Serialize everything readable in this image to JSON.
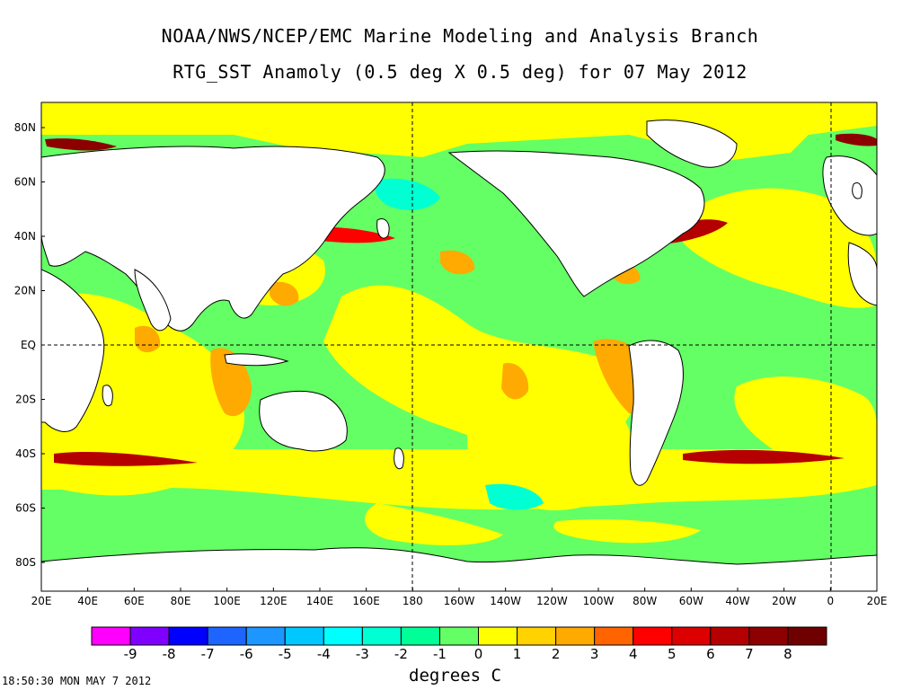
{
  "title_line1": "NOAA/NWS/NCEP/EMC Marine Modeling and Analysis Branch",
  "title_line2": "RTG_SST Anamoly (0.5 deg X 0.5 deg) for 07 May 2012",
  "lat_labels": [
    "80N",
    "60N",
    "40N",
    "20N",
    "EQ",
    "20S",
    "40S",
    "60S",
    "80S"
  ],
  "lon_labels": [
    "20E",
    "40E",
    "60E",
    "80E",
    "100E",
    "120E",
    "140E",
    "160E",
    "180",
    "160W",
    "140W",
    "120W",
    "100W",
    "80W",
    "60W",
    "40W",
    "20W",
    "0",
    "20E"
  ],
  "colorbar": {
    "ticks": [
      "-9",
      "-8",
      "-7",
      "-6",
      "-5",
      "-4",
      "-3",
      "-2",
      "-1",
      "0",
      "1",
      "2",
      "3",
      "4",
      "5",
      "6",
      "7",
      "8"
    ],
    "colors": [
      "#ff00ff",
      "#7f00ff",
      "#0000ff",
      "#1e64ff",
      "#1e96ff",
      "#00c8ff",
      "#00ffff",
      "#00ffd2",
      "#00ff96",
      "#64ff64",
      "#ffff00",
      "#ffd200",
      "#ffaa00",
      "#ff6400",
      "#ff0000",
      "#dc0000",
      "#b40000",
      "#8c0000",
      "#6e0000"
    ]
  },
  "units": "degrees C",
  "timestamp": "18:50:30  MON MAY 7 2012",
  "colors": {
    "land": "#ffffff",
    "ocean_base": "#64ff64",
    "frame": "#000000"
  }
}
